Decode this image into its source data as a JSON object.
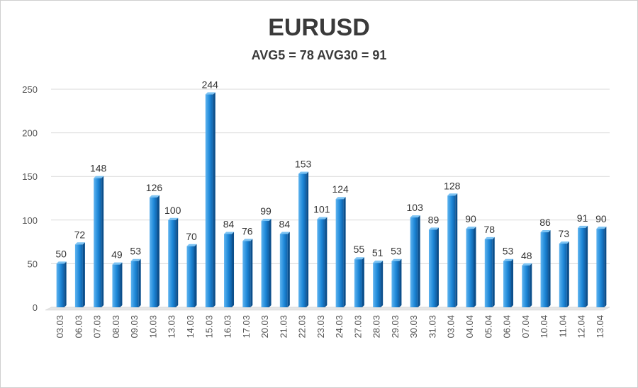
{
  "chart_data": {
    "type": "bar",
    "title": "EURUSD",
    "subtitle": "AVG5 = 78 AVG30 = 91",
    "categories": [
      "03.03",
      "06.03",
      "07.03",
      "08.03",
      "09.03",
      "10.03",
      "13.03",
      "14.03",
      "15.03",
      "16.03",
      "17.03",
      "20.03",
      "21.03",
      "22.03",
      "23.03",
      "24.03",
      "27.03",
      "28.03",
      "29.03",
      "30.03",
      "31.03",
      "03.04",
      "04.04",
      "05.04",
      "06.04",
      "07.04",
      "10.04",
      "11.04",
      "12.04",
      "13.04"
    ],
    "values": [
      50,
      72,
      148,
      49,
      53,
      126,
      100,
      70,
      244,
      84,
      76,
      99,
      84,
      153,
      101,
      124,
      55,
      51,
      53,
      103,
      89,
      128,
      90,
      78,
      53,
      48,
      86,
      73,
      91,
      90
    ],
    "ylim": [
      0,
      250
    ],
    "yticks": [
      0,
      50,
      100,
      150,
      200,
      250
    ],
    "grid": true,
    "bar_color": "#1e88d8"
  }
}
